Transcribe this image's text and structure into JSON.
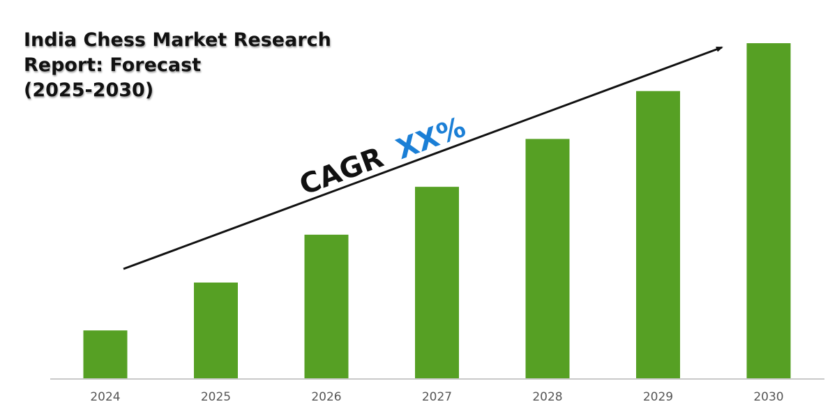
{
  "chart_data": {
    "type": "bar",
    "title_lines": [
      "India Chess Market Research",
      "Report: Forecast",
      "(2025-2030)"
    ],
    "categories": [
      "2024",
      "2025",
      "2026",
      "2027",
      "2028",
      "2029",
      "2030"
    ],
    "values": [
      1,
      2,
      3,
      4,
      5,
      6,
      7
    ],
    "ylim": [
      0,
      7
    ],
    "xlabel": "",
    "ylabel": "",
    "grid": false,
    "bar_color": "#56a024",
    "annotation": {
      "prefix": "CAGR",
      "value": "XX%",
      "value_color": "#1b7fd6"
    }
  }
}
